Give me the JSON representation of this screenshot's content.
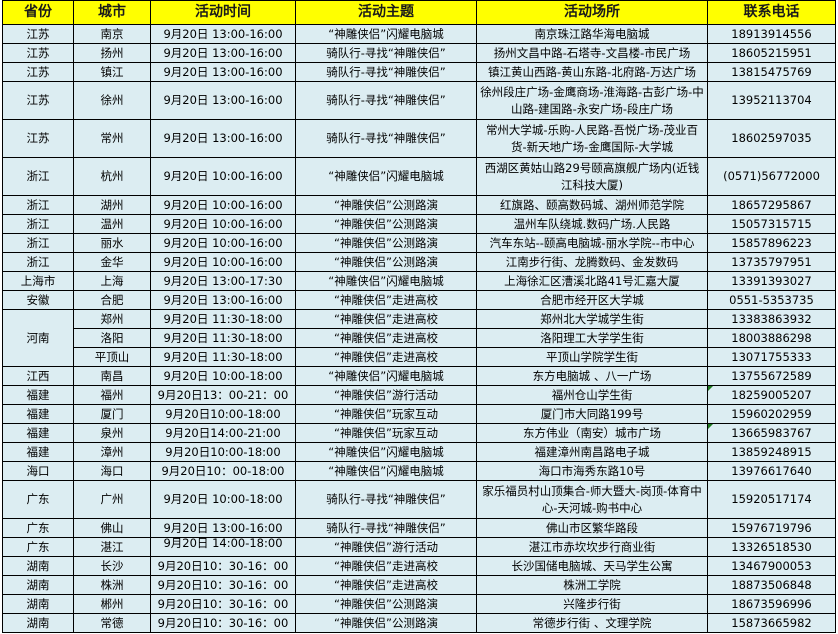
{
  "headers": [
    "省份",
    "城市",
    "活动时间",
    "活动主题",
    "活动场所",
    "联系电话"
  ],
  "rows": [
    {
      "province": "江苏",
      "city": "南京",
      "time": "9月20日 13:00-16:00",
      "theme": "“神雕侠侣”闪耀电脑城",
      "venue": "南京珠江路华海电脑城",
      "phone": "18913914556"
    },
    {
      "province": "江苏",
      "city": "扬州",
      "time": "9月20日 13:00-16:00",
      "theme": "骑队行-寻找“神雕侠侣”",
      "venue": "扬州文昌中路-石塔寺-文昌楼-市民广场",
      "phone": "18605215951"
    },
    {
      "province": "江苏",
      "city": "镇江",
      "time": "9月20日 13:00-16:00",
      "theme": "骑队行-寻找“神雕侠侣”",
      "venue": "镇江黄山西路-黄山东路-北府路-万达广场",
      "phone": "13815475769"
    },
    {
      "province": "江苏",
      "city": "徐州",
      "time": "9月20日 13:00-16:00",
      "theme": "骑队行-寻找“神雕侠侣”",
      "venue": "徐州段庄广场-金鹰商场-淮海路-古彭广场-中山路-建国路-永安广场-段庄广场",
      "phone": "13952113704",
      "tall": true
    },
    {
      "province": "江苏",
      "city": "常州",
      "time": "9月20日 13:00-16:00",
      "theme": "骑队行-寻找“神雕侠侣”",
      "venue": "常州大学城-乐购-人民路-吾悦广场-茂业百货-新天地广场-金鹰国际-大学城",
      "phone": "18602597035",
      "tall": true
    },
    {
      "province": "浙江",
      "city": "杭州",
      "time": "9月20日 10:00-16:00",
      "theme": "“神雕侠侣”闪耀电脑城",
      "venue": "西湖区黄姑山路29号颐高旗舰广场内(近钱江科技大厦)",
      "phone": "(0571)56772000",
      "tall": true
    },
    {
      "province": "浙江",
      "city": "湖州",
      "time": "9月20日 10:00-16:00",
      "theme": "“神雕侠侣”公测路演",
      "venue": "红旗路、颐高数码城、湖州师范学院",
      "phone": "18657295867"
    },
    {
      "province": "浙江",
      "city": "温州",
      "time": "9月20日 10:00-16:00",
      "theme": "“神雕侠侣”公测路演",
      "venue": "温州车队绕城.数码广场.人民路",
      "phone": "15057315715"
    },
    {
      "province": "浙江",
      "city": "丽水",
      "time": "9月20日 10:00-16:00",
      "theme": "“神雕侠侣”公测路演",
      "venue": "汽车东站--颐高电脑城-丽水学院--市中心",
      "phone": "15857896223"
    },
    {
      "province": "浙江",
      "city": "金华",
      "time": "9月20日 10:00-16:00",
      "theme": "“神雕侠侣”公测路演",
      "venue": "江南步行街、龙腾数码、金发数码",
      "phone": "13735797951"
    },
    {
      "province": "上海市",
      "city": "上海",
      "time": "9月20日 13:00-17:30",
      "theme": "“神雕侠侣”闪耀电脑城",
      "venue": "上海徐汇区漕溪北路41号汇嘉大厦",
      "phone": "13391393027"
    },
    {
      "province": "安徽",
      "city": "合肥",
      "time": "9月20日 13:00-16:00",
      "theme": "“神雕侠侣”走进高校",
      "venue": "合肥市经开区大学城",
      "phone": "0551-5353735"
    },
    {
      "province": "河南",
      "rowspan": 3,
      "city": "郑州",
      "time": "9月20日 11:30-18:00",
      "theme": "“神雕侠侣”走进高校",
      "venue": "郑州北大学城学生街",
      "phone": "13383863932"
    },
    {
      "city": "洛阳",
      "time": "9月20日 11:30-18:00",
      "theme": "“神雕侠侣”走进高校",
      "venue": "洛阳理工大学学生街",
      "phone": "18003886298"
    },
    {
      "city": "平顶山",
      "time": "9月20日 11:30-18:00",
      "theme": "“神雕侠侣”走进高校",
      "venue": "平顶山学院学生街",
      "phone": "13071755333"
    },
    {
      "province": "江西",
      "city": "南昌",
      "time": "9月20日 10:00-18:00",
      "theme": "“神雕侠侣”闪耀电脑城",
      "venue": "东方电脑城 、八一广场",
      "phone": "13755672589"
    },
    {
      "province": "福建",
      "city": "福州",
      "time": "9月20日13：00-21：00",
      "theme": "“神雕侠侣”游行活动",
      "venue": "福州仓山学生街",
      "phone": "18259005207",
      "mark": true
    },
    {
      "province": "福建",
      "city": "厦门",
      "time": "9月20日10:00-18:00",
      "theme": "“神雕侠侣”玩家互动",
      "venue": "厦门市大同路199号",
      "phone": "15960202959"
    },
    {
      "province": "福建",
      "city": "泉州",
      "time": "9月20日14:00-21:00",
      "theme": "“神雕侠侣”玩家互动",
      "venue": "东方伟业（南安）城市广场",
      "phone": "13665983767",
      "mark": true
    },
    {
      "province": "福建",
      "city": "漳州",
      "time": "9月20日10:00-18:00",
      "theme": "“神雕侠侣”闪耀电脑城",
      "venue": "福建漳州南昌路电子城",
      "phone": "13859248915"
    },
    {
      "province": "海口",
      "city": "海口",
      "time": "9月20日10：00-18:00",
      "theme": "“神雕侠侣”闪耀电脑城",
      "venue": "海口市海秀东路10号",
      "phone": "13976617640"
    },
    {
      "province": "广东",
      "city": "广州",
      "time": "9月20日 10:00-18:00",
      "theme": "骑队行-寻找“神雕侠侣”",
      "venue": "家乐福员村山顶集合-师大暨大-岗顶-体育中心-天河城-购书中心",
      "phone": "15920517174",
      "tall": true
    },
    {
      "province": "广东",
      "city": "佛山",
      "time": "9月20日 13:00-16:00",
      "theme": "骑队行-寻找“神雕侠侣”",
      "venue": "佛山市区繁华路段",
      "phone": "15976719796"
    },
    {
      "province": "广东",
      "city": "湛江",
      "time": "9月20日 14:00-18:00",
      "theme": "“神雕侠侣”游行活动",
      "venue": "湛江市赤坎坎步行商业街",
      "phone": "13326518530",
      "clip": true
    },
    {
      "province": "湖南",
      "city": "长沙",
      "time": "9月20日10：30-16：00",
      "theme": "“神雕侠侣”走进高校",
      "venue": "长沙国储电脑城、天马学生公寓",
      "phone": "13467900053"
    },
    {
      "province": "湖南",
      "city": "株洲",
      "time": "9月20日10：30-16：00",
      "theme": "“神雕侠侣”走进高校",
      "venue": "株洲工学院",
      "phone": "18873506848"
    },
    {
      "province": "湖南",
      "city": "郴州",
      "time": "9月20日10：30-16：00",
      "theme": "“神雕侠侣”公测路演",
      "venue": "兴隆步行街",
      "phone": "18673596996"
    },
    {
      "province": "湖南",
      "city": "常德",
      "time": "9月20日10：30-16：00",
      "theme": "“神雕侠侣”公测路演",
      "venue": "常德步行街 、文理学院",
      "phone": "15873665982"
    }
  ]
}
